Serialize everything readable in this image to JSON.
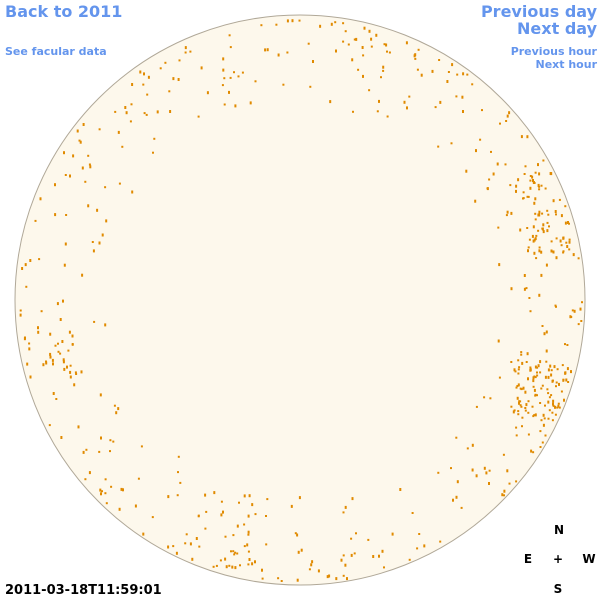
{
  "header": {
    "back_link": "Back to 2011",
    "facular_link": "See facular data"
  },
  "navigation": {
    "previous_day": "Previous day",
    "next_day": "Next day",
    "previous_hour": "Previous hour",
    "next_hour": "Next hour"
  },
  "compass": {
    "north": "N",
    "east": "E",
    "center": "+",
    "west": "W",
    "south": "S"
  },
  "timestamp": "2011-03-18T11:59:01"
}
